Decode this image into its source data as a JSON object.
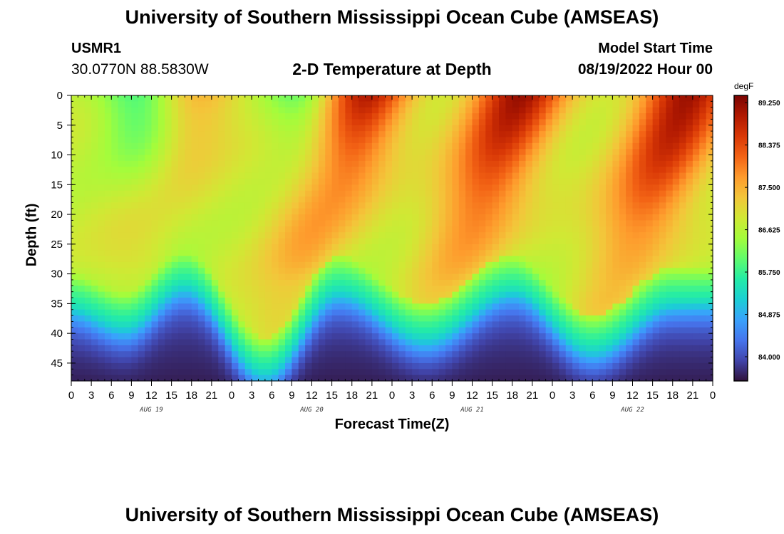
{
  "header": {
    "title": "University of Southern Mississippi Ocean Cube (AMSEAS)",
    "station_id": "USMR1",
    "coordinates": "30.0770N  88.5830W",
    "model_start_label": "Model Start Time",
    "model_start_value": "08/19/2022 Hour 00"
  },
  "footer": {
    "title": "University of Southern Mississippi Ocean Cube (AMSEAS)"
  },
  "chart_data": {
    "type": "heatmap",
    "title": "2-D Temperature at Depth",
    "xlabel": "Forecast Time(Z)",
    "ylabel": "Depth (ft)",
    "x_unit": "hours since model start",
    "xlim": [
      0,
      96
    ],
    "ylim": [
      0,
      48
    ],
    "x_tick_labels": [
      "0",
      "3",
      "6",
      "9",
      "12",
      "15",
      "18",
      "21",
      "0",
      "3",
      "6",
      "9",
      "12",
      "15",
      "18",
      "21",
      "0",
      "3",
      "6",
      "9",
      "12",
      "15",
      "18",
      "21",
      "0",
      "3",
      "6",
      "9",
      "12",
      "15",
      "18",
      "21",
      "0"
    ],
    "x_tick_hours": [
      0,
      3,
      6,
      9,
      12,
      15,
      18,
      21,
      24,
      27,
      30,
      33,
      36,
      39,
      42,
      45,
      48,
      51,
      54,
      57,
      60,
      63,
      66,
      69,
      72,
      75,
      78,
      81,
      84,
      87,
      90,
      93,
      96
    ],
    "date_labels": [
      {
        "label": "AUG 19",
        "hour": 12
      },
      {
        "label": "AUG 20",
        "hour": 36
      },
      {
        "label": "AUG 21",
        "hour": 60
      },
      {
        "label": "AUG 22",
        "hour": 84
      }
    ],
    "y_ticks": [
      0,
      5,
      10,
      15,
      20,
      25,
      30,
      35,
      40,
      45
    ],
    "colorbar": {
      "units": "degF",
      "min": 83.5,
      "max": 89.4,
      "labels": [
        "89.250",
        "88.375",
        "87.500",
        "86.625",
        "85.750",
        "84.875",
        "84.000"
      ],
      "label_values": [
        89.25,
        88.375,
        87.5,
        86.625,
        85.75,
        84.875,
        84.0
      ],
      "colors": [
        "#30123b",
        "#4145ab",
        "#4675ed",
        "#39a2fc",
        "#1bcfd4",
        "#24eca6",
        "#61fc6c",
        "#a4fc3b",
        "#d1e834",
        "#f3c63a",
        "#fe9b2d",
        "#f36315",
        "#d93806",
        "#b11901",
        "#7a0402"
      ]
    },
    "field_model": {
      "thermocline_depth_ft": {
        "hours": [
          0,
          8,
          17,
          29,
          40,
          53,
          66,
          78,
          90,
          96
        ],
        "values": [
          36,
          39,
          32,
          47,
          33,
          41,
          33,
          43,
          35,
          35
        ]
      },
      "warm_surface_peaks_degF": [
        {
          "hour": 19,
          "value": 87.6
        },
        {
          "hour": 44,
          "value": 89.0
        },
        {
          "hour": 67,
          "value": 89.1
        },
        {
          "hour": 92,
          "value": 89.2
        }
      ],
      "green_surface_minima_degF": [
        {
          "hour": 10,
          "value": 85.7
        },
        {
          "hour": 35,
          "value": 85.8
        }
      ],
      "mixed_layer_base_degF": 86.6,
      "bottom_temp_degF": 83.6
    }
  }
}
